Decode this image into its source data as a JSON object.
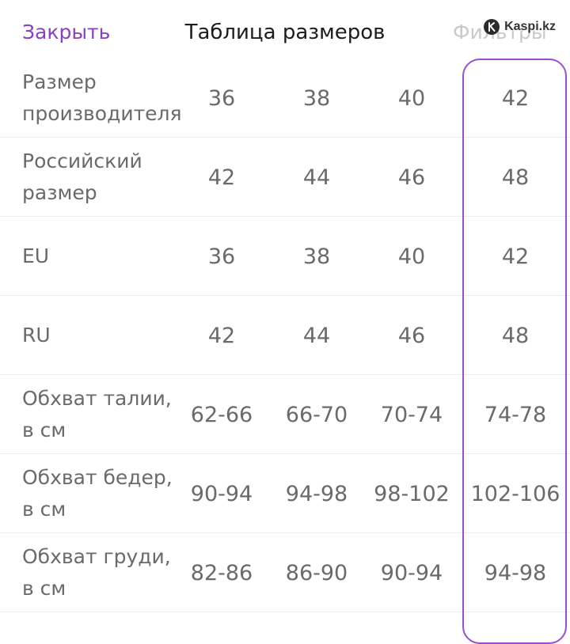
{
  "header": {
    "close_label": "Закрыть",
    "title": "Таблица размеров",
    "filters_label": "Фильтры"
  },
  "watermark": {
    "text": "Kaspi.kz"
  },
  "table": {
    "rows": [
      {
        "label": "Размер\nпроизводителя",
        "values": [
          "36",
          "38",
          "40",
          "42"
        ]
      },
      {
        "label": "Российский\nразмер",
        "values": [
          "42",
          "44",
          "46",
          "48"
        ]
      },
      {
        "label": "EU",
        "values": [
          "36",
          "38",
          "40",
          "42"
        ]
      },
      {
        "label": "RU",
        "values": [
          "42",
          "44",
          "46",
          "48"
        ]
      },
      {
        "label": "Обхват талии,\nв см",
        "values": [
          "62-66",
          "66-70",
          "70-74",
          "74-78"
        ]
      },
      {
        "label": "Обхват бедер,\nв см",
        "values": [
          "90-94",
          "94-98",
          "98-102",
          "102-106"
        ]
      },
      {
        "label": "Обхват груди,\nв см",
        "values": [
          "82-86",
          "86-90",
          "90-94",
          "94-98"
        ]
      }
    ],
    "selected_column_index": 3
  },
  "colors": {
    "accent": "#8a3fc7",
    "highlight_border": "#9c4dd6",
    "text": "#6a6a6a",
    "title": "#1c1c1c"
  }
}
